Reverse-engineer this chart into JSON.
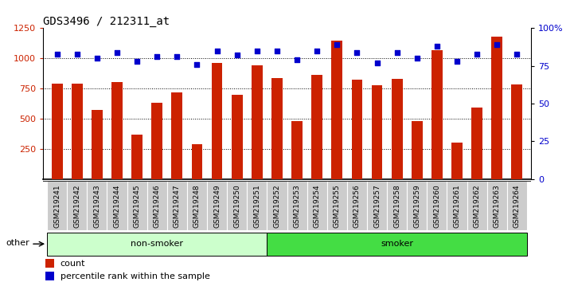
{
  "title": "GDS3496 / 212311_at",
  "samples": [
    "GSM219241",
    "GSM219242",
    "GSM219243",
    "GSM219244",
    "GSM219245",
    "GSM219246",
    "GSM219247",
    "GSM219248",
    "GSM219249",
    "GSM219250",
    "GSM219251",
    "GSM219252",
    "GSM219253",
    "GSM219254",
    "GSM219255",
    "GSM219256",
    "GSM219257",
    "GSM219258",
    "GSM219259",
    "GSM219260",
    "GSM219261",
    "GSM219262",
    "GSM219263",
    "GSM219264"
  ],
  "counts": [
    790,
    790,
    570,
    805,
    365,
    635,
    720,
    290,
    960,
    700,
    940,
    840,
    480,
    860,
    1150,
    825,
    780,
    830,
    480,
    1070,
    300,
    590,
    1180,
    785
  ],
  "percentile_ranks": [
    83,
    83,
    80,
    84,
    78,
    81,
    81,
    76,
    85,
    82,
    85,
    85,
    79,
    85,
    89,
    84,
    77,
    84,
    80,
    88,
    78,
    83,
    89,
    83
  ],
  "groups": [
    "non-smoker",
    "non-smoker",
    "non-smoker",
    "non-smoker",
    "non-smoker",
    "non-smoker",
    "non-smoker",
    "non-smoker",
    "non-smoker",
    "non-smoker",
    "non-smoker",
    "smoker",
    "smoker",
    "smoker",
    "smoker",
    "smoker",
    "smoker",
    "smoker",
    "smoker",
    "smoker",
    "smoker",
    "smoker",
    "smoker",
    "smoker"
  ],
  "bar_color": "#cc2200",
  "dot_color": "#0000cc",
  "non_smoker_bg": "#ccffcc",
  "smoker_bg": "#44dd44",
  "label_bg": "#cccccc",
  "ylim_left": [
    0,
    1250
  ],
  "ylim_right": [
    0,
    100
  ],
  "yticks_left": [
    250,
    500,
    750,
    1000,
    1250
  ],
  "yticks_right": [
    0,
    25,
    50,
    75,
    100
  ],
  "grid_values": [
    250,
    500,
    750,
    1000
  ],
  "legend_count": "count",
  "legend_pct": "percentile rank within the sample",
  "other_label": "other",
  "nonsmoker_label": "non-smoker",
  "smoker_label": "smoker",
  "title_fontsize": 10,
  "tick_fontsize": 8,
  "label_fontsize": 8,
  "bar_width": 0.55
}
